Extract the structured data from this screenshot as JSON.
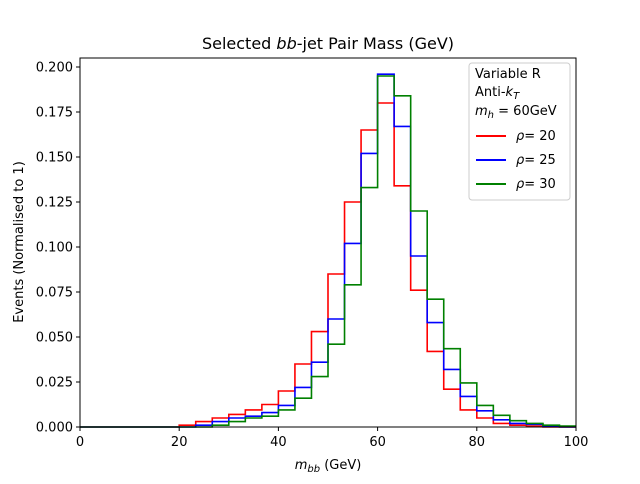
{
  "chart_data": {
    "type": "line",
    "title": "Selected bb-jet Pair Mass (GeV)",
    "title_parts": {
      "before": "Selected ",
      "italic": "bb",
      "after": "-jet Pair Mass (GeV)"
    },
    "xlabel": "m_bb (GeV)",
    "xlabel_parts": {
      "main": "m",
      "sub": "bb",
      "unit": " (GeV)"
    },
    "ylabel": "Events (Normalised to 1)",
    "xlim": [
      0,
      100
    ],
    "ylim": [
      0,
      0.205
    ],
    "x_ticks": [
      0,
      20,
      40,
      60,
      80,
      100
    ],
    "x_tick_labels": [
      "0",
      "20",
      "40",
      "60",
      "80",
      "100"
    ],
    "y_ticks": [
      0.0,
      0.025,
      0.05,
      0.075,
      0.1,
      0.125,
      0.15,
      0.175,
      0.2
    ],
    "y_tick_labels": [
      "0.000",
      "0.025",
      "0.050",
      "0.075",
      "0.100",
      "0.125",
      "0.150",
      "0.175",
      "0.200"
    ],
    "grid": false,
    "legend_placement": "top-right",
    "legend_header": {
      "line1": "Variable R",
      "line2_main": "Anti-",
      "line2_k": "k",
      "line2_sub": "T",
      "line3_m": "m",
      "line3_sub": "h",
      "line3_rest": " = 60GeV"
    },
    "bin_edges": [
      0,
      3.3333,
      6.6667,
      10,
      13.3333,
      16.6667,
      20,
      23.3333,
      26.6667,
      30,
      33.3333,
      36.6667,
      40,
      43.3333,
      46.6667,
      50,
      53.3333,
      56.6667,
      60,
      63.3333,
      66.6667,
      70,
      73.3333,
      76.6667,
      80,
      83.3333,
      86.6667,
      90,
      93.3333,
      96.6667,
      100
    ],
    "series": [
      {
        "name": "ρ = 20",
        "label_symbol": "ρ",
        "label_value": "= 20",
        "color": "#ff0000",
        "values": [
          0,
          0,
          0,
          0,
          0,
          0,
          0.001,
          0.003,
          0.005,
          0.007,
          0.0095,
          0.0125,
          0.02,
          0.035,
          0.053,
          0.085,
          0.125,
          0.165,
          0.18,
          0.134,
          0.076,
          0.042,
          0.021,
          0.0095,
          0.005,
          0.002,
          0.001,
          0.0005,
          0,
          0
        ]
      },
      {
        "name": "ρ = 25",
        "label_symbol": "ρ",
        "label_value": "= 25",
        "color": "#0000ff",
        "values": [
          0,
          0,
          0,
          0,
          0,
          0,
          0,
          0.001,
          0.003,
          0.005,
          0.006,
          0.008,
          0.012,
          0.022,
          0.036,
          0.06,
          0.102,
          0.152,
          0.196,
          0.167,
          0.095,
          0.058,
          0.032,
          0.017,
          0.009,
          0.004,
          0.002,
          0.0015,
          0.0005,
          0
        ]
      },
      {
        "name": "ρ = 30",
        "label_symbol": "ρ",
        "label_value": "= 30",
        "color": "#008000",
        "values": [
          0,
          0,
          0,
          0,
          0,
          0,
          0,
          0,
          0.001,
          0.003,
          0.005,
          0.006,
          0.0095,
          0.016,
          0.028,
          0.046,
          0.079,
          0.133,
          0.195,
          0.184,
          0.12,
          0.071,
          0.0435,
          0.0245,
          0.012,
          0.0065,
          0.0035,
          0.002,
          0.001,
          0.0005
        ]
      }
    ]
  }
}
